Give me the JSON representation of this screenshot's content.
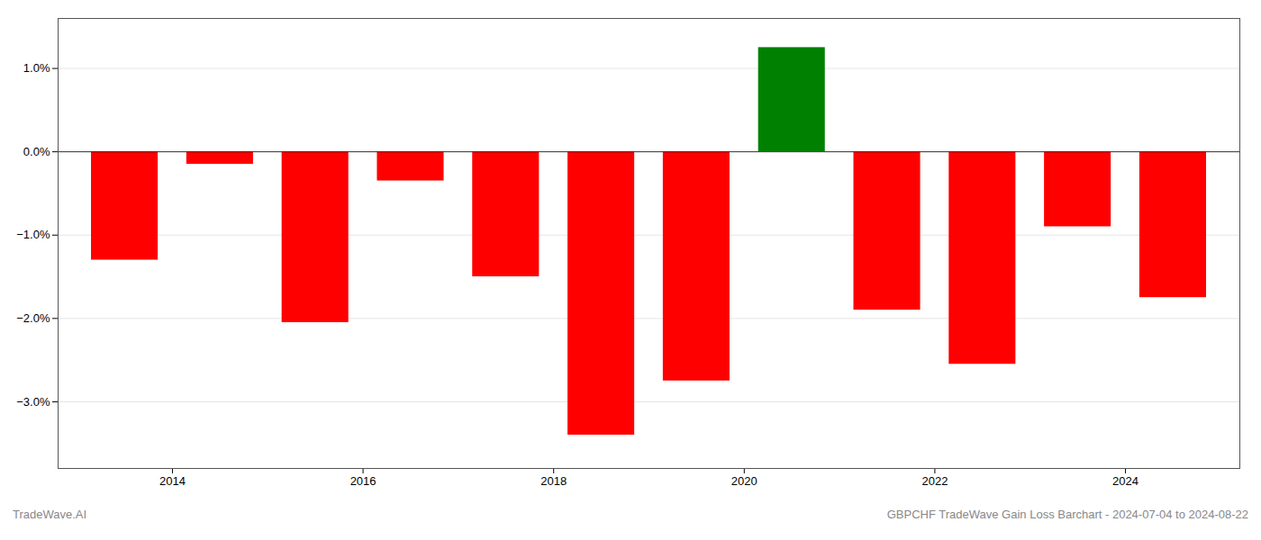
{
  "chart_data": {
    "type": "bar",
    "x": [
      2013,
      2014,
      2015,
      2016,
      2017,
      2018,
      2019,
      2020,
      2021,
      2022,
      2023,
      2024
    ],
    "values": [
      -1.3,
      -0.15,
      -2.05,
      -0.35,
      -1.5,
      -3.4,
      -2.75,
      1.25,
      -1.9,
      -2.55,
      -0.9,
      -1.75
    ],
    "colors": [
      "red",
      "red",
      "red",
      "red",
      "red",
      "red",
      "red",
      "green",
      "red",
      "red",
      "red",
      "red"
    ],
    "xlim": [
      2012.3,
      2024.7
    ],
    "xticks": [
      {
        "value": 2013.5,
        "label": "2014"
      },
      {
        "value": 2015.5,
        "label": "2016"
      },
      {
        "value": 2017.5,
        "label": "2018"
      },
      {
        "value": 2019.5,
        "label": "2020"
      },
      {
        "value": 2021.5,
        "label": "2022"
      },
      {
        "value": 2023.5,
        "label": "2024"
      }
    ],
    "ylim": [
      -3.8,
      1.6
    ],
    "yticks": [
      {
        "value": 1.0,
        "label": "1.0%"
      },
      {
        "value": 0.0,
        "label": "0.0%"
      },
      {
        "value": -1.0,
        "label": "−1.0%"
      },
      {
        "value": -2.0,
        "label": "−2.0%"
      },
      {
        "value": -3.0,
        "label": "−3.0%"
      }
    ],
    "grid": true,
    "annotations": [
      "TradeWave.AI",
      "GBPCHF TradeWave Gain Loss Barchart - 2024-07-04 to 2024-08-22"
    ]
  }
}
